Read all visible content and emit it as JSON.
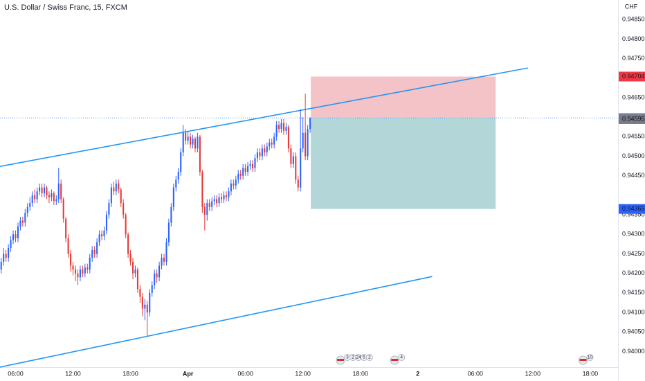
{
  "chart_data": {
    "type": "candlestick",
    "title": "U.S. Dollar / Swiss Franc, 15, FXCM",
    "currency": "CHF",
    "up_color": "#2962ff",
    "down_color": "#e53935",
    "xlim": [
      -0.5,
      257.6
    ],
    "ylim": [
      0.9396,
      0.949
    ],
    "xticks": [
      {
        "value": 6,
        "label": "06:00"
      },
      {
        "value": 30,
        "label": "12:00"
      },
      {
        "value": 54,
        "label": "18:00"
      },
      {
        "value": 78,
        "label": "Apr"
      },
      {
        "value": 102,
        "label": "06:00"
      },
      {
        "value": 126,
        "label": "12:00"
      },
      {
        "value": 150,
        "label": "18:00"
      },
      {
        "value": 174,
        "label": "2"
      },
      {
        "value": 198,
        "label": "06:00"
      },
      {
        "value": 222,
        "label": "12:00"
      },
      {
        "value": 246,
        "label": "18:00"
      }
    ],
    "yticks": [
      {
        "value": 0.9485,
        "label": "0.94850"
      },
      {
        "value": 0.948,
        "label": "0.94800"
      },
      {
        "value": 0.9475,
        "label": "0.94750"
      },
      {
        "value": 0.9465,
        "label": "0.94650"
      },
      {
        "value": 0.9455,
        "label": "0.94550"
      },
      {
        "value": 0.945,
        "label": "0.94500"
      },
      {
        "value": 0.9445,
        "label": "0.94450"
      },
      {
        "value": 0.9435,
        "label": "0.94350"
      },
      {
        "value": 0.943,
        "label": "0.94300"
      },
      {
        "value": 0.9425,
        "label": "0.94250"
      },
      {
        "value": 0.942,
        "label": "0.94200"
      },
      {
        "value": 0.9415,
        "label": "0.94150"
      },
      {
        "value": 0.941,
        "label": "0.94100"
      },
      {
        "value": 0.9405,
        "label": "0.94050"
      },
      {
        "value": 0.94,
        "label": "0.94000"
      }
    ],
    "open": [
      0.9421,
      0.9423,
      0.9425,
      0.9424,
      0.94265,
      0.94285,
      0.943,
      0.9429,
      0.9432,
      0.94335,
      0.9433,
      0.94355,
      0.9437,
      0.9438,
      0.944,
      0.9439,
      0.9441,
      0.9442,
      0.94405,
      0.9442,
      0.944,
      0.94395,
      0.94405,
      0.94385,
      0.9439,
      0.9443,
      0.9439,
      0.9434,
      0.9429,
      0.9425,
      0.9422,
      0.9421,
      0.942,
      0.9419,
      0.9421,
      0.942,
      0.94215,
      0.9421,
      0.9424,
      0.9426,
      0.9425,
      0.9428,
      0.943,
      0.94295,
      0.9431,
      0.9435,
      0.9438,
      0.9442,
      0.9441,
      0.9443,
      0.94415,
      0.9438,
      0.9435,
      0.943,
      0.9425,
      0.9423,
      0.942,
      0.9421,
      0.9416,
      0.9414,
      0.9411,
      0.9412,
      0.941,
      0.9415,
      0.9417,
      0.942,
      0.9419,
      0.9422,
      0.9424,
      0.9423,
      0.9428,
      0.9433,
      0.9437,
      0.9442,
      0.9444,
      0.9446,
      0.9451,
      0.9456,
      0.9454,
      0.9455,
      0.9453,
      0.94545,
      0.9452,
      0.9455,
      0.9446,
      0.9437,
      0.9435,
      0.9438,
      0.9437,
      0.94385,
      0.9439,
      0.9438,
      0.94395,
      0.9439,
      0.944,
      0.94395,
      0.9441,
      0.9443,
      0.94425,
      0.9444,
      0.94455,
      0.9445,
      0.9447,
      0.9446,
      0.94475,
      0.9448,
      0.9447,
      0.94495,
      0.9451,
      0.945,
      0.9452,
      0.9451,
      0.94525,
      0.94535,
      0.9453,
      0.9455,
      0.9458,
      0.9457,
      0.94585,
      0.94565,
      0.94575,
      0.9452,
      0.9448,
      0.945,
      0.9444,
      0.9442,
      0.9452,
      0.9456,
      0.945,
      0.9457
    ],
    "high": [
      0.9424,
      0.94265,
      0.9426,
      0.94275,
      0.94295,
      0.9431,
      0.9431,
      0.9433,
      0.94345,
      0.94345,
      0.94365,
      0.9438,
      0.94395,
      0.9441,
      0.94415,
      0.9442,
      0.9443,
      0.9443,
      0.9443,
      0.94425,
      0.9441,
      0.94415,
      0.9441,
      0.944,
      0.9447,
      0.9444,
      0.94395,
      0.94345,
      0.943,
      0.9426,
      0.9423,
      0.9422,
      0.9421,
      0.9422,
      0.9422,
      0.94225,
      0.94225,
      0.9425,
      0.9427,
      0.9427,
      0.9429,
      0.9431,
      0.9431,
      0.9432,
      0.9436,
      0.9439,
      0.9443,
      0.94435,
      0.9444,
      0.9444,
      0.9442,
      0.9439,
      0.94355,
      0.94305,
      0.9426,
      0.9424,
      0.9422,
      0.94215,
      0.9417,
      0.9415,
      0.94135,
      0.9413,
      0.9416,
      0.9418,
      0.9421,
      0.9421,
      0.9423,
      0.9425,
      0.9425,
      0.9429,
      0.9434,
      0.9438,
      0.9443,
      0.9445,
      0.9447,
      0.9452,
      0.9458,
      0.9457,
      0.94565,
      0.9456,
      0.94555,
      0.9455,
      0.9456,
      0.94555,
      0.94465,
      0.9438,
      0.9439,
      0.9439,
      0.94395,
      0.944,
      0.944,
      0.94405,
      0.94405,
      0.9441,
      0.9441,
      0.9442,
      0.9444,
      0.9444,
      0.9445,
      0.94465,
      0.94465,
      0.9448,
      0.9448,
      0.94485,
      0.9449,
      0.9449,
      0.94505,
      0.9452,
      0.9452,
      0.9453,
      0.9453,
      0.94535,
      0.94545,
      0.94545,
      0.9456,
      0.9459,
      0.9459,
      0.94595,
      0.94595,
      0.94585,
      0.9458,
      0.9453,
      0.9451,
      0.9451,
      0.9445,
      0.9462,
      0.946,
      0.9466,
      0.9458,
      0.946
    ],
    "low": [
      0.942,
      0.9422,
      0.9423,
      0.9423,
      0.94255,
      0.94275,
      0.9428,
      0.9428,
      0.9431,
      0.9432,
      0.9432,
      0.94345,
      0.9436,
      0.9437,
      0.9438,
      0.9438,
      0.944,
      0.94395,
      0.94395,
      0.9439,
      0.9438,
      0.94385,
      0.94375,
      0.94375,
      0.9438,
      0.9438,
      0.9433,
      0.9428,
      0.9424,
      0.94205,
      0.94195,
      0.9418,
      0.9417,
      0.9418,
      0.9419,
      0.9419,
      0.942,
      0.942,
      0.9423,
      0.9424,
      0.9424,
      0.9427,
      0.94285,
      0.94285,
      0.943,
      0.9434,
      0.9437,
      0.944,
      0.944,
      0.94405,
      0.9437,
      0.9434,
      0.9429,
      0.9424,
      0.9422,
      0.94185,
      0.9419,
      0.9415,
      0.94125,
      0.9409,
      0.9408,
      0.9404,
      0.9409,
      0.9414,
      0.9416,
      0.94175,
      0.9418,
      0.9421,
      0.9422,
      0.9422,
      0.9427,
      0.9432,
      0.9436,
      0.9441,
      0.9443,
      0.9445,
      0.945,
      0.9453,
      0.9453,
      0.9452,
      0.9452,
      0.9451,
      0.9451,
      0.9445,
      0.94355,
      0.9431,
      0.94335,
      0.9436,
      0.9436,
      0.94375,
      0.9437,
      0.9437,
      0.9438,
      0.9438,
      0.94385,
      0.94385,
      0.944,
      0.94415,
      0.94415,
      0.9443,
      0.9444,
      0.9444,
      0.9445,
      0.9445,
      0.94465,
      0.9446,
      0.9446,
      0.94485,
      0.9449,
      0.9449,
      0.945,
      0.945,
      0.94515,
      0.9452,
      0.9452,
      0.9454,
      0.9456,
      0.9456,
      0.94555,
      0.94555,
      0.9451,
      0.9447,
      0.9447,
      0.9443,
      0.9441,
      0.9441,
      0.9451,
      0.9449,
      0.9449,
      0.9456
    ],
    "close": [
      0.9423,
      0.9425,
      0.9424,
      0.94265,
      0.94285,
      0.943,
      0.9429,
      0.9432,
      0.94335,
      0.9433,
      0.94355,
      0.9437,
      0.9438,
      0.944,
      0.9439,
      0.9441,
      0.9442,
      0.94405,
      0.9442,
      0.944,
      0.94395,
      0.94405,
      0.94385,
      0.9439,
      0.9443,
      0.9439,
      0.9434,
      0.9429,
      0.9425,
      0.9422,
      0.9421,
      0.942,
      0.9419,
      0.9421,
      0.942,
      0.94215,
      0.9421,
      0.9424,
      0.9426,
      0.9425,
      0.9428,
      0.943,
      0.94295,
      0.9431,
      0.9435,
      0.9438,
      0.9442,
      0.9441,
      0.9443,
      0.94415,
      0.9438,
      0.9435,
      0.943,
      0.9425,
      0.9423,
      0.942,
      0.9421,
      0.9416,
      0.9414,
      0.9411,
      0.9412,
      0.941,
      0.9415,
      0.9417,
      0.942,
      0.9419,
      0.9422,
      0.9424,
      0.9423,
      0.9428,
      0.9433,
      0.9437,
      0.9442,
      0.9444,
      0.9446,
      0.9451,
      0.9456,
      0.9454,
      0.9455,
      0.9453,
      0.94545,
      0.9452,
      0.9455,
      0.9446,
      0.9437,
      0.9435,
      0.9438,
      0.9437,
      0.94385,
      0.9439,
      0.9438,
      0.94395,
      0.9439,
      0.944,
      0.94395,
      0.9441,
      0.9443,
      0.94425,
      0.9444,
      0.94455,
      0.9445,
      0.9447,
      0.9446,
      0.94475,
      0.9448,
      0.9447,
      0.94495,
      0.9451,
      0.945,
      0.9452,
      0.9451,
      0.94525,
      0.94535,
      0.9453,
      0.9455,
      0.9458,
      0.9457,
      0.94585,
      0.94565,
      0.94575,
      0.9452,
      0.9448,
      0.945,
      0.9444,
      0.9442,
      0.9452,
      0.9456,
      0.945,
      0.9457,
      0.94598
    ],
    "trend_lines": [
      {
        "x": [
          -0.5,
          220
        ],
        "y": [
          0.94474,
          0.94726
        ],
        "color": "#2196f3"
      },
      {
        "x": [
          -0.5,
          180
        ],
        "y": [
          0.9396,
          0.94192
        ],
        "color": "#2196f3"
      }
    ],
    "position": {
      "x": [
        129.3,
        206.5
      ],
      "entry": 0.94598,
      "target": 0.94704,
      "stop": 0.94365,
      "target_color": "#f2b8be",
      "stop_color": "#a6cfd1"
    },
    "price_labels": [
      {
        "value": 0.94704,
        "label": "0.94704",
        "color": "#f23645"
      },
      {
        "value": 0.94598,
        "label": "0.94598",
        "color": "#5b9cf6"
      },
      {
        "value": 0.94595,
        "label": "0.94595",
        "color": "#787b86"
      },
      {
        "value": 0.94365,
        "label": "0.94365",
        "color": "#2962ff"
      }
    ],
    "events": [
      {
        "x": 141.7,
        "labels": [
          "3",
          "2",
          "24",
          "5",
          "2"
        ]
      },
      {
        "x": 164.3,
        "labels": [
          "4"
        ]
      },
      {
        "x": 243,
        "labels": [
          "10"
        ]
      }
    ]
  }
}
